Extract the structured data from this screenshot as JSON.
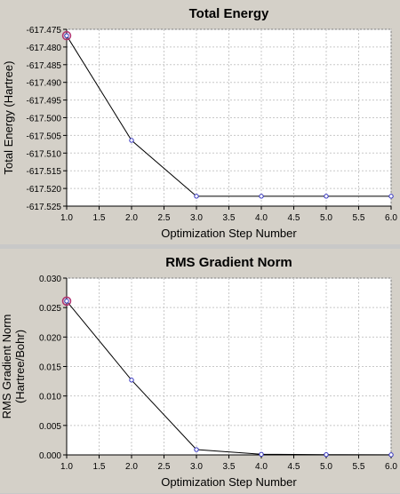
{
  "chart_data": [
    {
      "type": "line",
      "title": "Total Energy",
      "xlabel": "Optimization Step Number",
      "ylabel": "Total Energy (Hartree)",
      "xlim": [
        1.0,
        6.0
      ],
      "ylim": [
        -617.525,
        -617.475
      ],
      "x_ticks": [
        "1.0",
        "1.5",
        "2.0",
        "2.5",
        "3.0",
        "3.5",
        "4.0",
        "4.5",
        "5.0",
        "5.5",
        "6.0"
      ],
      "y_ticks": [
        "-617.475",
        "-617.480",
        "-617.485",
        "-617.490",
        "-617.495",
        "-617.500",
        "-617.505",
        "-617.510",
        "-617.515",
        "-617.520",
        "-617.525"
      ],
      "grid": true,
      "series": [
        {
          "x": [
            1,
            2,
            3,
            4,
            5,
            6
          ],
          "values": [
            -617.4768,
            -617.5064,
            -617.5222,
            -617.5222,
            -617.5222,
            -617.5222
          ],
          "color": "#000000",
          "marker_color": "#3030c0",
          "highlight_color": "#b03070"
        }
      ]
    },
    {
      "type": "line",
      "title": "RMS Gradient Norm",
      "xlabel": "Optimization Step Number",
      "ylabel": [
        "RMS Gradient Norm",
        "(Hartree/Bohr)"
      ],
      "xlim": [
        1.0,
        6.0
      ],
      "ylim": [
        0.0,
        0.03
      ],
      "x_ticks": [
        "1.0",
        "1.5",
        "2.0",
        "2.5",
        "3.0",
        "3.5",
        "4.0",
        "4.5",
        "5.0",
        "5.5",
        "6.0"
      ],
      "y_ticks": [
        "0.030",
        "0.025",
        "0.020",
        "0.015",
        "0.010",
        "0.005",
        "0.000"
      ],
      "grid": true,
      "series": [
        {
          "x": [
            1,
            2,
            3,
            4,
            5,
            6
          ],
          "values": [
            0.0261,
            0.0127,
            0.0009,
            0.0001,
            5e-05,
            2e-05
          ],
          "color": "#000000",
          "marker_color": "#3030c0",
          "highlight_color": "#b03070"
        }
      ]
    }
  ]
}
